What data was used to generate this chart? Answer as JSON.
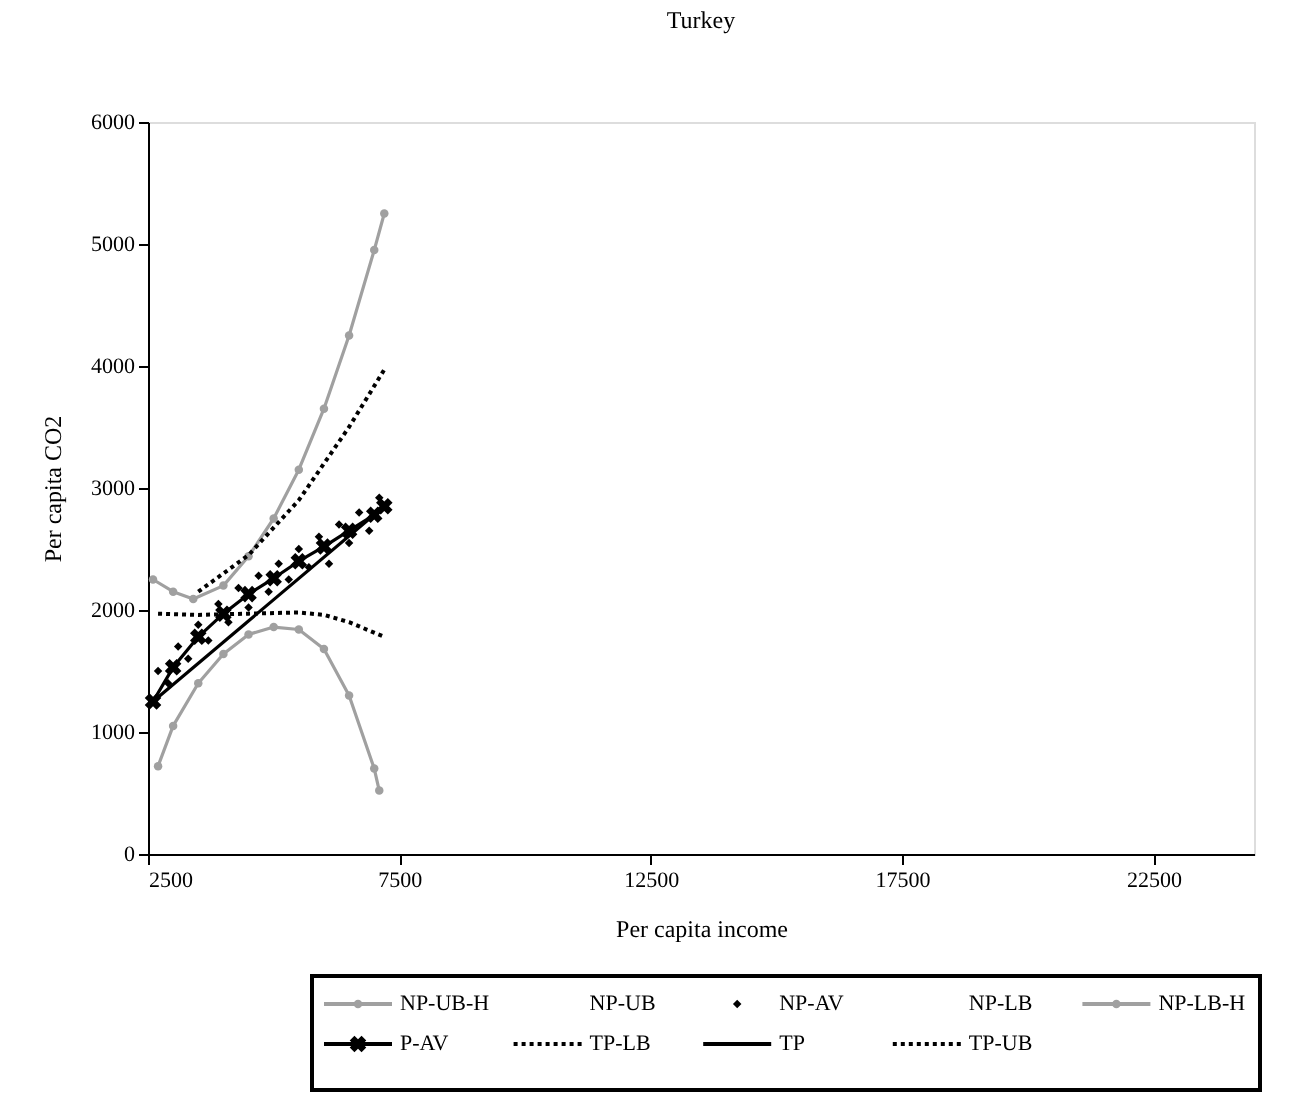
{
  "chart_data": {
    "type": "line",
    "title": "Turkey",
    "xlabel": "Per capita income",
    "ylabel": "Per capita CO2",
    "xlim": [
      2500,
      24500
    ],
    "xticks": [
      2500,
      7500,
      12500,
      17500,
      22500
    ],
    "ylim": [
      0,
      6000
    ],
    "yticks": [
      0,
      1000,
      2000,
      3000,
      4000,
      5000,
      6000
    ],
    "grid": false,
    "legend": "bottom",
    "series": [
      {
        "name": "NP-UB-H",
        "color": "#a0a0a0",
        "marker": "circle",
        "line_style": "solid",
        "x": [
          2600,
          3000,
          3400,
          4000,
          4500,
          5000,
          5500,
          6000,
          6500,
          7000,
          7200
        ],
        "values": [
          2250,
          2150,
          2090,
          2200,
          2440,
          2750,
          3150,
          3650,
          4250,
          4950,
          5250
        ]
      },
      {
        "name": "NP-UB",
        "color": null
      },
      {
        "name": "NP-AV",
        "type": "scatter",
        "color": "#000000",
        "marker": "diamond",
        "x": [
          2700,
          2900,
          3100,
          3300,
          3500,
          3700,
          3900,
          4100,
          4300,
          4500,
          4700,
          4900,
          5100,
          5300,
          5500,
          5700,
          5900,
          6100,
          6300,
          6500,
          6700,
          6900,
          7100
        ],
        "values": [
          1500,
          1400,
          1700,
          1600,
          1880,
          1750,
          2050,
          1900,
          2180,
          2020,
          2280,
          2150,
          2380,
          2250,
          2500,
          2350,
          2600,
          2380,
          2700,
          2550,
          2800,
          2650,
          2920
        ]
      },
      {
        "name": "NP-LB",
        "color": null
      },
      {
        "name": "NP-LB-H",
        "color": "#a0a0a0",
        "marker": "circle",
        "line_style": "solid",
        "x": [
          2700,
          3000,
          3500,
          4000,
          4500,
          5000,
          5500,
          6000,
          6500,
          7000,
          7100
        ],
        "values": [
          720,
          1050,
          1400,
          1640,
          1800,
          1860,
          1840,
          1680,
          1300,
          700,
          520
        ]
      },
      {
        "name": "P-AV",
        "color": "#000000",
        "marker": "cross",
        "line_style": "solid",
        "x": [
          2600,
          3000,
          3500,
          4000,
          4500,
          5000,
          5500,
          6000,
          6500,
          7000,
          7200
        ],
        "values": [
          1250,
          1530,
          1780,
          1970,
          2130,
          2260,
          2400,
          2520,
          2650,
          2780,
          2850
        ]
      },
      {
        "name": "TP-LB",
        "color": "#000000",
        "marker": "none",
        "line_style": "dotted",
        "x": [
          2700,
          3500,
          4500,
          5500,
          6000,
          6500,
          7200
        ],
        "values": [
          1970,
          1960,
          1970,
          1980,
          1960,
          1900,
          1780
        ]
      },
      {
        "name": "TP",
        "color": "#000000",
        "marker": "none",
        "line_style": "solid",
        "x": [
          2600,
          7200
        ],
        "values": [
          1250,
          2850
        ]
      },
      {
        "name": "TP-UB",
        "color": "#000000",
        "marker": "none",
        "line_style": "dotted",
        "x": [
          3500,
          4500,
          5500,
          6500,
          7200
        ],
        "values": [
          2150,
          2450,
          2900,
          3500,
          3970
        ]
      }
    ]
  }
}
